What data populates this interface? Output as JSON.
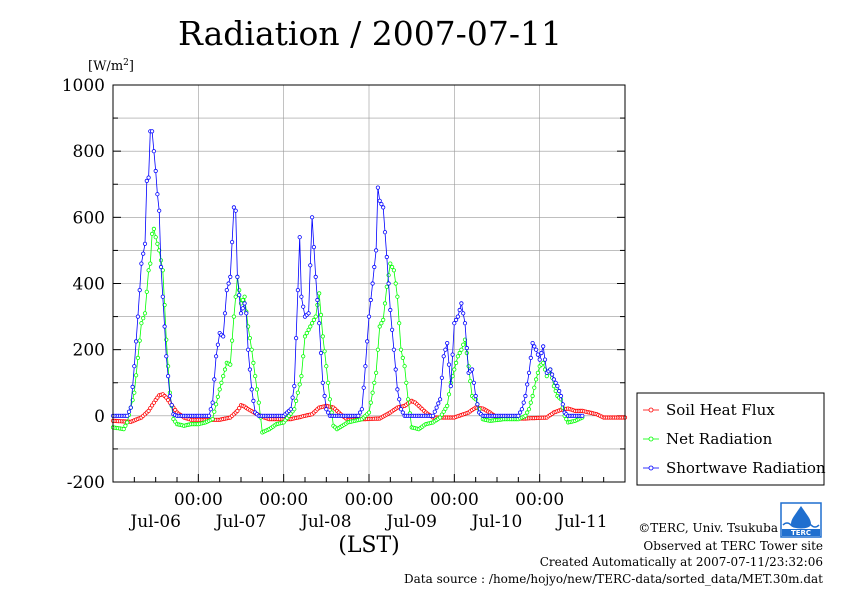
{
  "chart_data": {
    "type": "line",
    "title": "Radiation / 2007-07-11",
    "ylabel": "[W/m2]",
    "ylabel_base": "[W/m",
    "ylabel_sup": "2",
    "ylabel_close": "]",
    "xlabel": "(LST)",
    "ylim": [
      -200,
      1000
    ],
    "yticks": [
      -200,
      0,
      200,
      400,
      600,
      800,
      1000
    ],
    "ytick_labels": [
      "-200",
      "0",
      "200",
      "400",
      "600",
      "800",
      "1000"
    ],
    "xlim": [
      0,
      144
    ],
    "x_unit": "hours from 2007-07-06 00:00 LST",
    "xtick_labels": [
      {
        "x": 24,
        "time": "00:00",
        "date": "Jul-07"
      },
      {
        "x": 48,
        "time": "00:00",
        "date": "Jul-08"
      },
      {
        "x": 72,
        "time": "00:00",
        "date": "Jul-09"
      },
      {
        "x": 96,
        "time": "00:00",
        "date": "Jul-10"
      },
      {
        "x": 120,
        "time": "00:00",
        "date": "Jul-11"
      }
    ],
    "date_labels": [
      {
        "x": 12,
        "label": "Jul-06"
      },
      {
        "x": 36,
        "label": "Jul-07"
      },
      {
        "x": 60,
        "label": "Jul-08"
      },
      {
        "x": 84,
        "label": "Jul-09"
      },
      {
        "x": 108,
        "label": "Jul-10"
      },
      {
        "x": 132,
        "label": "Jul-11"
      }
    ],
    "grid": true,
    "legend_position": "right",
    "sample_interval_hours": 0.5,
    "series": [
      {
        "name": "Soil Heat Flux",
        "color": "#ff0000",
        "anchors": [
          [
            0,
            -15
          ],
          [
            5,
            -18
          ],
          [
            8,
            -5
          ],
          [
            10,
            15
          ],
          [
            12,
            48
          ],
          [
            13,
            62
          ],
          [
            14,
            65
          ],
          [
            15,
            55
          ],
          [
            16,
            40
          ],
          [
            18,
            10
          ],
          [
            20,
            -5
          ],
          [
            22,
            -12
          ],
          [
            30,
            -12
          ],
          [
            33,
            -5
          ],
          [
            35,
            15
          ],
          [
            36,
            32
          ],
          [
            37,
            28
          ],
          [
            38,
            20
          ],
          [
            40,
            8
          ],
          [
            42,
            -3
          ],
          [
            44,
            -10
          ],
          [
            50,
            -10
          ],
          [
            56,
            5
          ],
          [
            58,
            25
          ],
          [
            60,
            30
          ],
          [
            62,
            25
          ],
          [
            64,
            5
          ],
          [
            66,
            -12
          ],
          [
            75,
            -8
          ],
          [
            78,
            10
          ],
          [
            80,
            25
          ],
          [
            82,
            30
          ],
          [
            84,
            45
          ],
          [
            85,
            40
          ],
          [
            86,
            30
          ],
          [
            88,
            10
          ],
          [
            90,
            -5
          ],
          [
            96,
            -5
          ],
          [
            100,
            10
          ],
          [
            102,
            25
          ],
          [
            104,
            22
          ],
          [
            106,
            10
          ],
          [
            108,
            -5
          ],
          [
            110,
            -8
          ],
          [
            116,
            -8
          ],
          [
            122,
            -5
          ],
          [
            124,
            10
          ],
          [
            126,
            18
          ],
          [
            128,
            22
          ],
          [
            130,
            15
          ],
          [
            132,
            15
          ],
          [
            134,
            10
          ],
          [
            136,
            5
          ],
          [
            138,
            -5
          ],
          [
            144,
            -5
          ]
        ]
      },
      {
        "name": "Net Radiation",
        "color": "#00ff00",
        "anchors": [
          [
            0,
            -35
          ],
          [
            3,
            -40
          ],
          [
            4,
            -20
          ],
          [
            6,
            70
          ],
          [
            8,
            280
          ],
          [
            9,
            310
          ],
          [
            10,
            440
          ],
          [
            10.5,
            460
          ],
          [
            11,
            550
          ],
          [
            11.5,
            565
          ],
          [
            12,
            540
          ],
          [
            13,
            500
          ],
          [
            14,
            440
          ],
          [
            15,
            230
          ],
          [
            16,
            70
          ],
          [
            17,
            -10
          ],
          [
            18,
            -25
          ],
          [
            20,
            -30
          ],
          [
            22,
            -25
          ],
          [
            24,
            -25
          ],
          [
            26,
            -20
          ],
          [
            28,
            -10
          ],
          [
            30,
            80
          ],
          [
            32,
            160
          ],
          [
            33,
            155
          ],
          [
            34,
            300
          ],
          [
            35,
            420
          ],
          [
            36,
            340
          ],
          [
            37,
            360
          ],
          [
            38,
            270
          ],
          [
            39,
            200
          ],
          [
            40,
            120
          ],
          [
            41,
            40
          ],
          [
            42,
            -50
          ],
          [
            44,
            -40
          ],
          [
            46,
            -25
          ],
          [
            48,
            -20
          ],
          [
            51,
            20
          ],
          [
            53,
            120
          ],
          [
            54,
            240
          ],
          [
            55,
            260
          ],
          [
            56,
            280
          ],
          [
            57,
            300
          ],
          [
            58,
            370
          ],
          [
            59,
            240
          ],
          [
            60,
            150
          ],
          [
            61,
            50
          ],
          [
            62,
            -30
          ],
          [
            63,
            -40
          ],
          [
            66,
            -20
          ],
          [
            70,
            -10
          ],
          [
            72,
            10
          ],
          [
            74,
            130
          ],
          [
            75,
            270
          ],
          [
            76,
            290
          ],
          [
            77,
            390
          ],
          [
            78,
            460
          ],
          [
            79,
            440
          ],
          [
            80,
            360
          ],
          [
            81,
            200
          ],
          [
            82,
            150
          ],
          [
            83,
            50
          ],
          [
            84,
            -35
          ],
          [
            86,
            -40
          ],
          [
            88,
            -25
          ],
          [
            90,
            -20
          ],
          [
            92,
            -5
          ],
          [
            94,
            30
          ],
          [
            95,
            100
          ],
          [
            96,
            140
          ],
          [
            97,
            180
          ],
          [
            98,
            200
          ],
          [
            99,
            230
          ],
          [
            100,
            150
          ],
          [
            101,
            60
          ],
          [
            102,
            50
          ],
          [
            103,
            20
          ],
          [
            104,
            -10
          ],
          [
            106,
            -15
          ],
          [
            110,
            -10
          ],
          [
            114,
            -10
          ],
          [
            116,
            0
          ],
          [
            117,
            20
          ],
          [
            118,
            60
          ],
          [
            119,
            110
          ],
          [
            120,
            150
          ],
          [
            121,
            160
          ],
          [
            122,
            120
          ],
          [
            123,
            140
          ],
          [
            124,
            90
          ],
          [
            125,
            60
          ],
          [
            126,
            50
          ],
          [
            127,
            0
          ],
          [
            128,
            -20
          ],
          [
            130,
            -15
          ],
          [
            132,
            -5
          ]
        ]
      },
      {
        "name": "Shortwave Radiation",
        "color": "#0000ff",
        "anchors": [
          [
            0,
            0
          ],
          [
            4,
            0
          ],
          [
            5,
            25
          ],
          [
            6,
            150
          ],
          [
            7,
            300
          ],
          [
            8,
            460
          ],
          [
            9,
            520
          ],
          [
            9.5,
            710
          ],
          [
            10,
            720
          ],
          [
            10.5,
            860
          ],
          [
            11,
            860
          ],
          [
            11.5,
            800
          ],
          [
            12,
            740
          ],
          [
            12.5,
            670
          ],
          [
            13,
            620
          ],
          [
            13.5,
            450
          ],
          [
            14,
            360
          ],
          [
            15,
            180
          ],
          [
            16,
            60
          ],
          [
            17,
            5
          ],
          [
            18,
            0
          ],
          [
            24,
            0
          ],
          [
            27,
            0
          ],
          [
            28,
            40
          ],
          [
            29,
            180
          ],
          [
            30,
            250
          ],
          [
            31,
            240
          ],
          [
            32,
            380
          ],
          [
            33,
            420
          ],
          [
            34,
            630
          ],
          [
            34.5,
            620
          ],
          [
            35,
            420
          ],
          [
            36,
            310
          ],
          [
            37,
            340
          ],
          [
            37.5,
            310
          ],
          [
            38,
            200
          ],
          [
            39,
            80
          ],
          [
            40,
            10
          ],
          [
            41,
            0
          ],
          [
            48,
            0
          ],
          [
            50,
            20
          ],
          [
            51,
            90
          ],
          [
            52,
            380
          ],
          [
            52.5,
            540
          ],
          [
            53,
            360
          ],
          [
            54,
            300
          ],
          [
            55,
            310
          ],
          [
            56,
            600
          ],
          [
            57,
            420
          ],
          [
            58,
            280
          ],
          [
            59,
            100
          ],
          [
            60,
            20
          ],
          [
            61,
            0
          ],
          [
            69,
            0
          ],
          [
            70,
            20
          ],
          [
            71,
            150
          ],
          [
            72,
            300
          ],
          [
            73,
            400
          ],
          [
            74,
            500
          ],
          [
            74.5,
            690
          ],
          [
            75,
            650
          ],
          [
            76,
            630
          ],
          [
            77,
            480
          ],
          [
            78,
            320
          ],
          [
            79,
            200
          ],
          [
            80,
            80
          ],
          [
            81,
            20
          ],
          [
            82,
            0
          ],
          [
            90,
            0
          ],
          [
            92,
            50
          ],
          [
            93,
            180
          ],
          [
            94,
            220
          ],
          [
            95,
            90
          ],
          [
            96,
            280
          ],
          [
            97,
            300
          ],
          [
            98,
            340
          ],
          [
            99,
            280
          ],
          [
            100,
            130
          ],
          [
            101,
            140
          ],
          [
            102,
            60
          ],
          [
            103,
            10
          ],
          [
            104,
            0
          ],
          [
            114,
            0
          ],
          [
            115,
            20
          ],
          [
            116,
            60
          ],
          [
            117,
            130
          ],
          [
            118,
            220
          ],
          [
            119,
            200
          ],
          [
            120,
            170
          ],
          [
            121,
            210
          ],
          [
            122,
            130
          ],
          [
            123,
            140
          ],
          [
            124,
            110
          ],
          [
            125,
            90
          ],
          [
            126,
            60
          ],
          [
            127,
            10
          ],
          [
            128,
            0
          ],
          [
            132,
            0
          ]
        ]
      }
    ]
  },
  "footer": {
    "copyright": "©TERC, Univ. Tsukuba",
    "observed": "Observed at TERC Tower site",
    "created": "Created Automatically at 2007-07-11/23:32:06",
    "source": "Data source : /home/hojyo/new/TERC-data/sorted_data/MET.30m.dat"
  },
  "logo": {
    "text": "TERC",
    "color": "#1f6fcf"
  }
}
